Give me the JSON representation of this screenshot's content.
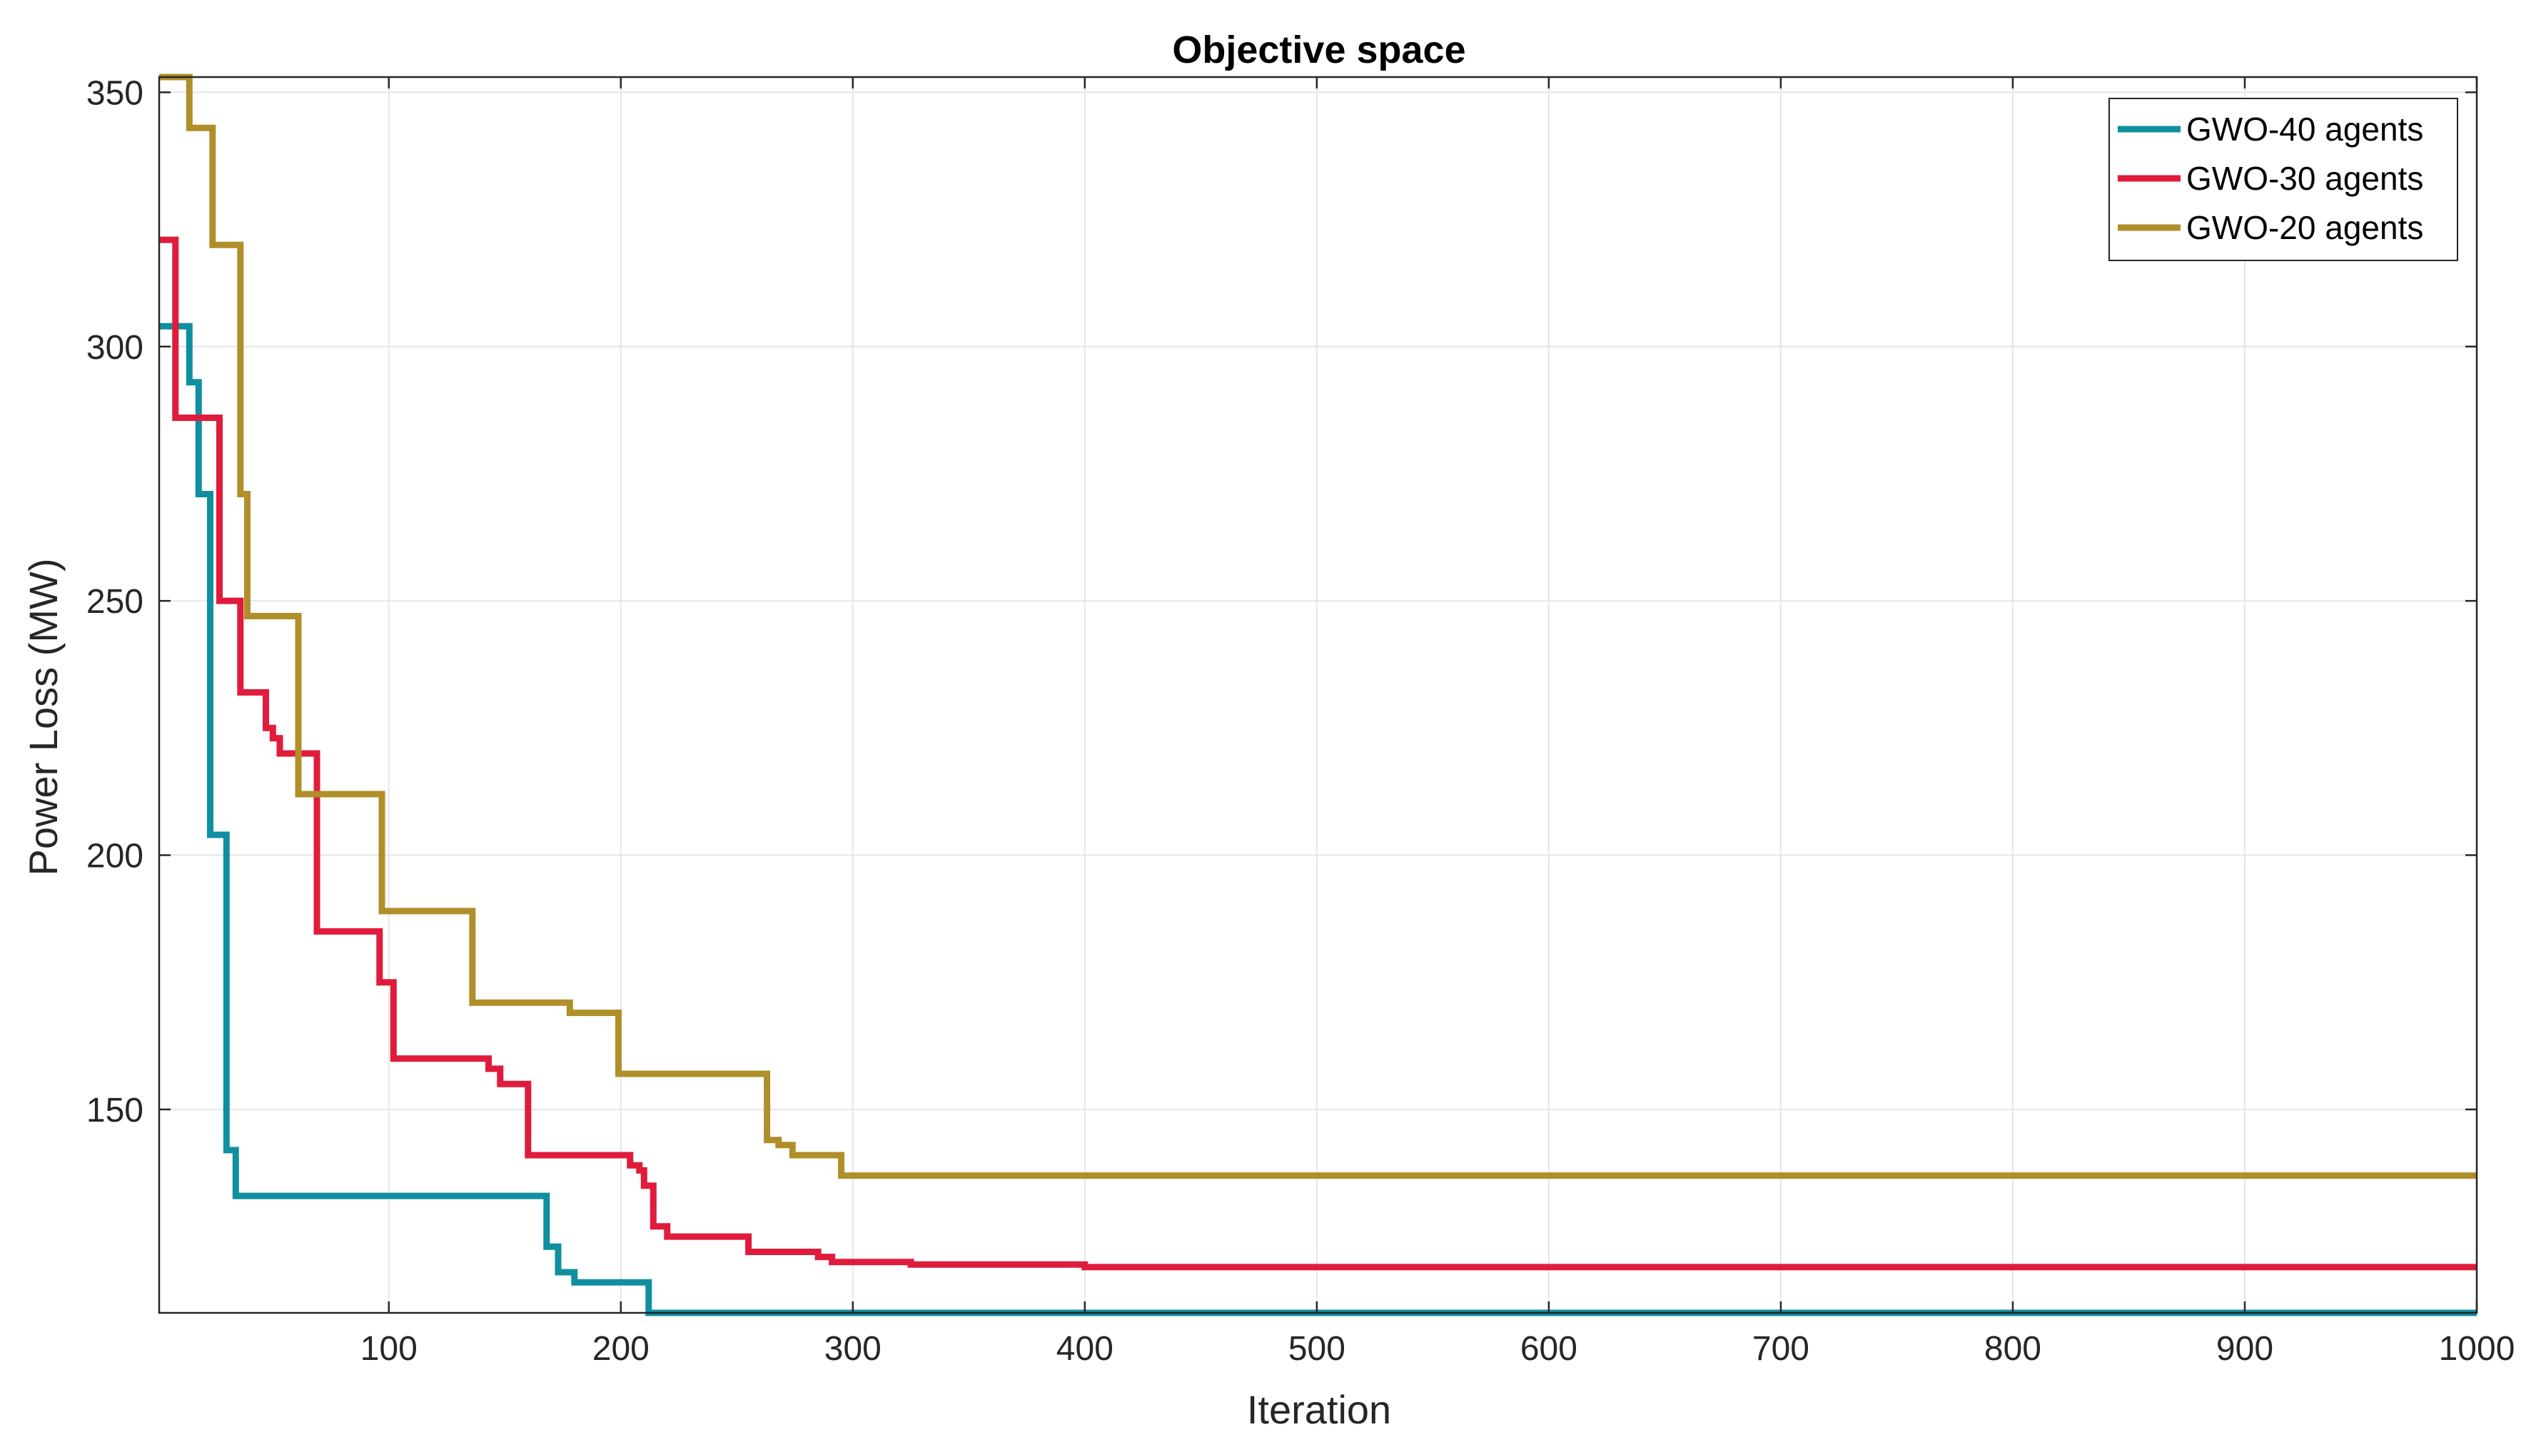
{
  "chart_data": {
    "type": "line",
    "title": "Objective space",
    "xlabel": "Iteration",
    "ylabel": "Power Loss (MW)",
    "xlim": [
      1,
      1000
    ],
    "ylim": [
      110,
      353
    ],
    "xticks": [
      100,
      200,
      300,
      400,
      500,
      600,
      700,
      800,
      900,
      1000
    ],
    "yticks": [
      150,
      200,
      250,
      300,
      350
    ],
    "grid": true,
    "legend_position": "top-right",
    "series": [
      {
        "name": "GWO-40 agents",
        "color": "#0f8fa0",
        "step_points": [
          [
            1,
            304
          ],
          [
            14,
            293
          ],
          [
            18,
            271
          ],
          [
            23,
            204
          ],
          [
            30,
            142
          ],
          [
            34,
            133
          ],
          [
            168,
            123
          ],
          [
            173,
            118
          ],
          [
            180,
            116
          ],
          [
            212,
            110
          ],
          [
            1000,
            110
          ]
        ]
      },
      {
        "name": "GWO-30 agents",
        "color": "#e01b3c",
        "step_points": [
          [
            1,
            321
          ],
          [
            8,
            286
          ],
          [
            27,
            250
          ],
          [
            36,
            232
          ],
          [
            47,
            225
          ],
          [
            50,
            223
          ],
          [
            53,
            220
          ],
          [
            69,
            185
          ],
          [
            96,
            175
          ],
          [
            102,
            160
          ],
          [
            143,
            158
          ],
          [
            148,
            155
          ],
          [
            160,
            141
          ],
          [
            204,
            139
          ],
          [
            208,
            138
          ],
          [
            210,
            135
          ],
          [
            214,
            127
          ],
          [
            220,
            125
          ],
          [
            255,
            122
          ],
          [
            285,
            121
          ],
          [
            291,
            120
          ],
          [
            325,
            119.5
          ],
          [
            400,
            119
          ],
          [
            1000,
            119
          ]
        ]
      },
      {
        "name": "GWO-20 agents",
        "color": "#b08f2a",
        "step_points": [
          [
            1,
            353
          ],
          [
            14,
            343
          ],
          [
            24,
            320
          ],
          [
            36,
            271
          ],
          [
            39,
            247
          ],
          [
            61,
            212
          ],
          [
            97,
            189
          ],
          [
            136,
            171
          ],
          [
            178,
            169
          ],
          [
            199,
            157
          ],
          [
            263,
            144
          ],
          [
            268,
            143
          ],
          [
            274,
            141
          ],
          [
            295,
            137
          ],
          [
            1000,
            137
          ]
        ]
      }
    ]
  }
}
